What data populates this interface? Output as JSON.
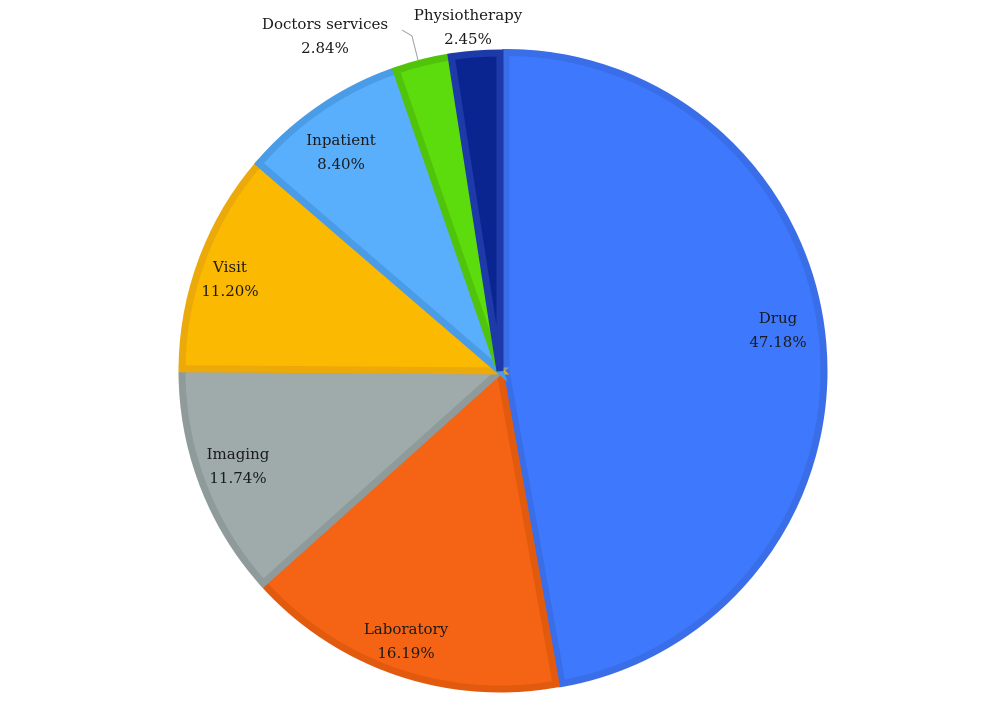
{
  "chart_data": {
    "type": "pie",
    "title": "",
    "start_angle_deg": 0,
    "direction": "clockwise",
    "slices": [
      {
        "label": "Drug",
        "value": 47.18,
        "value_text": "47.18%",
        "color": "#3d78fd",
        "border": "#3a6ee8"
      },
      {
        "label": "Laboratory",
        "value": 16.19,
        "value_text": "16.19%",
        "color": "#f56414",
        "border": "#e25a0e"
      },
      {
        "label": "Imaging",
        "value": 11.74,
        "value_text": "11.74%",
        "color": "#9eabaa",
        "border": "#8f9b9a"
      },
      {
        "label": "Visit",
        "value": 11.2,
        "value_text": "11.20%",
        "color": "#fbb901",
        "border": "#eba90a"
      },
      {
        "label": "Inpatient",
        "value": 8.4,
        "value_text": "8.40%",
        "color": "#5aaffd",
        "border": "#4a9ce6"
      },
      {
        "label": "Doctors services",
        "value": 2.84,
        "value_text": "2.84%",
        "color": "#5cdc0c",
        "border": "#4fc40b"
      },
      {
        "label": "Physiotherapy",
        "value": 2.45,
        "value_text": "2.45%",
        "color": "#0b2590",
        "border": "#1d3aa8"
      }
    ]
  }
}
